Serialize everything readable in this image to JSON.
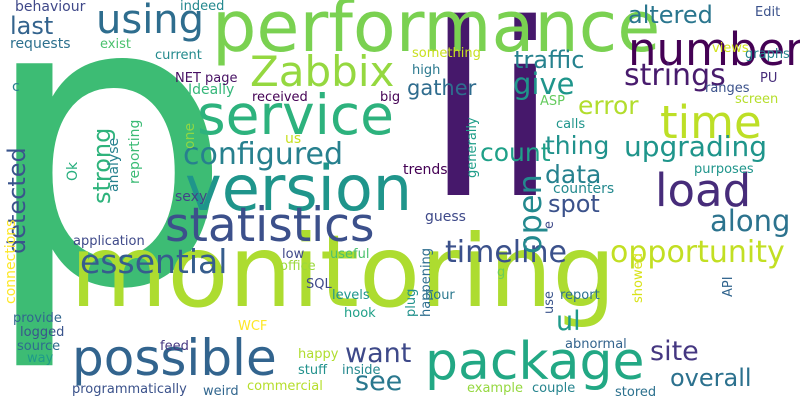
{
  "background": "#ffffff",
  "words": [
    {
      "text": "p",
      "color": "#3dbc74"
    },
    {
      "text": "li",
      "color": "#46186b"
    },
    {
      "text": "monitoring",
      "color": "#addc30"
    },
    {
      "text": "performance",
      "color": "#7ad151"
    },
    {
      "text": "version",
      "color": "#1f958b"
    },
    {
      "text": "service",
      "color": "#2db27d"
    },
    {
      "text": "package",
      "color": "#22a884"
    },
    {
      "text": "possible",
      "color": "#32648e"
    },
    {
      "text": "statistics",
      "color": "#3c508b"
    },
    {
      "text": "time",
      "color": "#bddf26"
    },
    {
      "text": "load",
      "color": "#472c7a"
    },
    {
      "text": "number",
      "color": "#440154"
    },
    {
      "text": "Zabbix",
      "color": "#95d840"
    },
    {
      "text": "using",
      "color": "#2e6d8e"
    },
    {
      "text": "essential",
      "color": "#365d8d"
    },
    {
      "text": "configured",
      "color": "#27808e"
    },
    {
      "text": "timeline",
      "color": "#3b518b"
    },
    {
      "text": "opportunity",
      "color": "#c2df23"
    },
    {
      "text": "strings",
      "color": "#481b6d"
    },
    {
      "text": "upgrading",
      "color": "#1f958b"
    },
    {
      "text": "along",
      "color": "#2c738e"
    },
    {
      "text": "want",
      "color": "#3e4989"
    },
    {
      "text": "overall",
      "color": "#2c718e"
    },
    {
      "text": "see",
      "color": "#2a788e"
    },
    {
      "text": "site",
      "color": "#453781"
    },
    {
      "text": "ul",
      "color": "#1f9a8a"
    },
    {
      "text": "give",
      "color": "#1f958b"
    },
    {
      "text": "traffic",
      "color": "#26828e"
    },
    {
      "text": "error",
      "color": "#b2dd2d"
    },
    {
      "text": "altered",
      "color": "#2a768e"
    },
    {
      "text": "open",
      "color": "#23898e"
    },
    {
      "text": "data",
      "color": "#26818e"
    },
    {
      "text": "spot",
      "color": "#3b528b"
    },
    {
      "text": "thing",
      "color": "#20928c"
    },
    {
      "text": "count",
      "color": "#1fa088"
    },
    {
      "text": "strong",
      "color": "#2eb37c"
    },
    {
      "text": "detected",
      "color": "#3a548c"
    },
    {
      "text": "last",
      "color": "#33638d"
    },
    {
      "text": "gather",
      "color": "#2f6c8e"
    },
    {
      "text": "counters",
      "color": "#23898e"
    },
    {
      "text": "sexy",
      "color": "#414487"
    },
    {
      "text": "guess",
      "color": "#3e4989"
    },
    {
      "text": "trends",
      "color": "#440154"
    },
    {
      "text": "analyse",
      "color": "#26818e"
    },
    {
      "text": "reporting",
      "color": "#3bbb75"
    },
    {
      "text": "one",
      "color": "#8fd744"
    },
    {
      "text": "Ok",
      "color": "#29af7f"
    },
    {
      "text": "Ideally",
      "color": "#35b779"
    },
    {
      "text": "received",
      "color": "#440154"
    },
    {
      "text": "big",
      "color": "#440154"
    },
    {
      "text": "us",
      "color": "#c8e020"
    },
    {
      "text": "NET page",
      "color": "#471063"
    },
    {
      "text": "current",
      "color": "#238a8d"
    },
    {
      "text": "requests",
      "color": "#2d708e"
    },
    {
      "text": "exist",
      "color": "#4ac16d"
    },
    {
      "text": "behaviour",
      "color": "#3f4889"
    },
    {
      "text": "indeed",
      "color": "#23888e"
    },
    {
      "text": "something",
      "color": "#c8e020"
    },
    {
      "text": "high",
      "color": "#2a788e"
    },
    {
      "text": "ASP",
      "color": "#65cb5e"
    },
    {
      "text": "calls",
      "color": "#1f958b"
    },
    {
      "text": "generally",
      "color": "#1f9e89"
    },
    {
      "text": "purposes",
      "color": "#1f958b"
    },
    {
      "text": "screen",
      "color": "#b5de2b"
    },
    {
      "text": "ranges",
      "color": "#3b528b"
    },
    {
      "text": "PU",
      "color": "#472d7b"
    },
    {
      "text": "views",
      "color": "#d2e21b"
    },
    {
      "text": "graphs",
      "color": "#25848e"
    },
    {
      "text": "Edit",
      "color": "#3b528b"
    },
    {
      "text": "c",
      "color": "#27808e"
    },
    {
      "text": "e",
      "color": "#3e4989"
    },
    {
      "text": "g",
      "color": "#6ccd5a"
    },
    {
      "text": "application",
      "color": "#3e4989"
    },
    {
      "text": "low",
      "color": "#3f4889"
    },
    {
      "text": "office",
      "color": "#9bd93c"
    },
    {
      "text": "useful",
      "color": "#4ac16d"
    },
    {
      "text": "hour",
      "color": "#2a788e"
    },
    {
      "text": "SQL",
      "color": "#3e4989"
    },
    {
      "text": "levels",
      "color": "#1f958b"
    },
    {
      "text": "hook",
      "color": "#1fa088"
    },
    {
      "text": "report",
      "color": "#2c718e"
    },
    {
      "text": "use",
      "color": "#3a548c"
    },
    {
      "text": "plug",
      "color": "#21918c"
    },
    {
      "text": "showed",
      "color": "#d8e219"
    },
    {
      "text": "API",
      "color": "#32658e"
    },
    {
      "text": "happening",
      "color": "#2e6e8e"
    },
    {
      "text": "provide",
      "color": "#31668e"
    },
    {
      "text": "logged",
      "color": "#3a548c"
    },
    {
      "text": "WCF",
      "color": "#fde725"
    },
    {
      "text": "connections",
      "color": "#fde725"
    },
    {
      "text": "source",
      "color": "#2f6c8e"
    },
    {
      "text": "way",
      "color": "#1f9a8a"
    },
    {
      "text": "feed",
      "color": "#453781"
    },
    {
      "text": "happy",
      "color": "#b0dd2f"
    },
    {
      "text": "stuff",
      "color": "#21918c"
    },
    {
      "text": "inside",
      "color": "#23888e"
    },
    {
      "text": "abnormal",
      "color": "#33638d"
    },
    {
      "text": "programmatically",
      "color": "#3b528b"
    },
    {
      "text": "weird",
      "color": "#31668e"
    },
    {
      "text": "commercial",
      "color": "#b5de2b"
    },
    {
      "text": "example",
      "color": "#95d840"
    },
    {
      "text": "couple",
      "color": "#25848e"
    },
    {
      "text": "stored",
      "color": "#2c718e"
    }
  ]
}
